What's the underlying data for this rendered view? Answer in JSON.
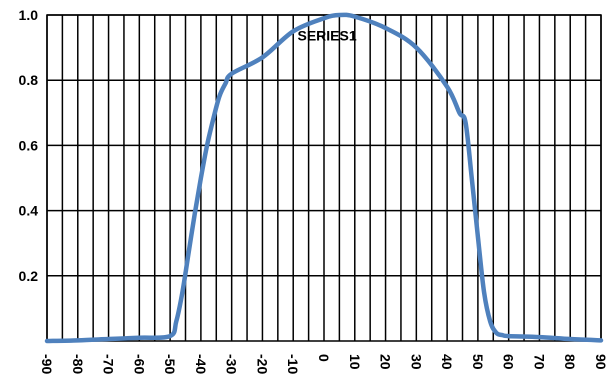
{
  "chart_data": {
    "type": "line",
    "title": "",
    "xlabel": "",
    "ylabel": "",
    "xlim": [
      -90,
      90
    ],
    "ylim": [
      0,
      1.0
    ],
    "x_ticks": [
      -90,
      -80,
      -70,
      -60,
      -50,
      -40,
      -30,
      -20,
      -10,
      0,
      10,
      20,
      30,
      40,
      50,
      60,
      70,
      80,
      90
    ],
    "x_tick_labels": [
      "-90",
      "-80",
      "-70",
      "-60",
      "-50",
      "-40",
      "-30",
      "-20",
      "-10",
      "0",
      "10",
      "20",
      "30",
      "40",
      "50",
      "60",
      "70",
      "80",
      "90"
    ],
    "y_ticks": [
      0.2,
      0.4,
      0.6,
      0.8,
      1.0
    ],
    "y_tick_labels": [
      "0.2",
      "0.4",
      "0.6",
      "0.8",
      "1.0"
    ],
    "grid": "on",
    "series": [
      {
        "name": "SERIES1",
        "color": "#4f81bd",
        "x": [
          -90,
          -80,
          -70,
          -60,
          -50,
          -48,
          -46,
          -44,
          -42,
          -40,
          -38,
          -36,
          -34,
          -32,
          -30,
          -20,
          -10,
          0,
          5,
          10,
          20,
          30,
          40,
          44,
          46,
          48,
          50,
          52,
          54,
          56,
          58,
          60,
          70,
          80,
          90
        ],
        "y": [
          0.0,
          0.002,
          0.006,
          0.01,
          0.015,
          0.06,
          0.15,
          0.27,
          0.39,
          0.5,
          0.6,
          0.68,
          0.75,
          0.79,
          0.82,
          0.87,
          0.95,
          0.99,
          1.0,
          0.995,
          0.96,
          0.9,
          0.78,
          0.7,
          0.67,
          0.5,
          0.32,
          0.15,
          0.06,
          0.025,
          0.018,
          0.015,
          0.012,
          0.006,
          0.002
        ]
      }
    ]
  }
}
